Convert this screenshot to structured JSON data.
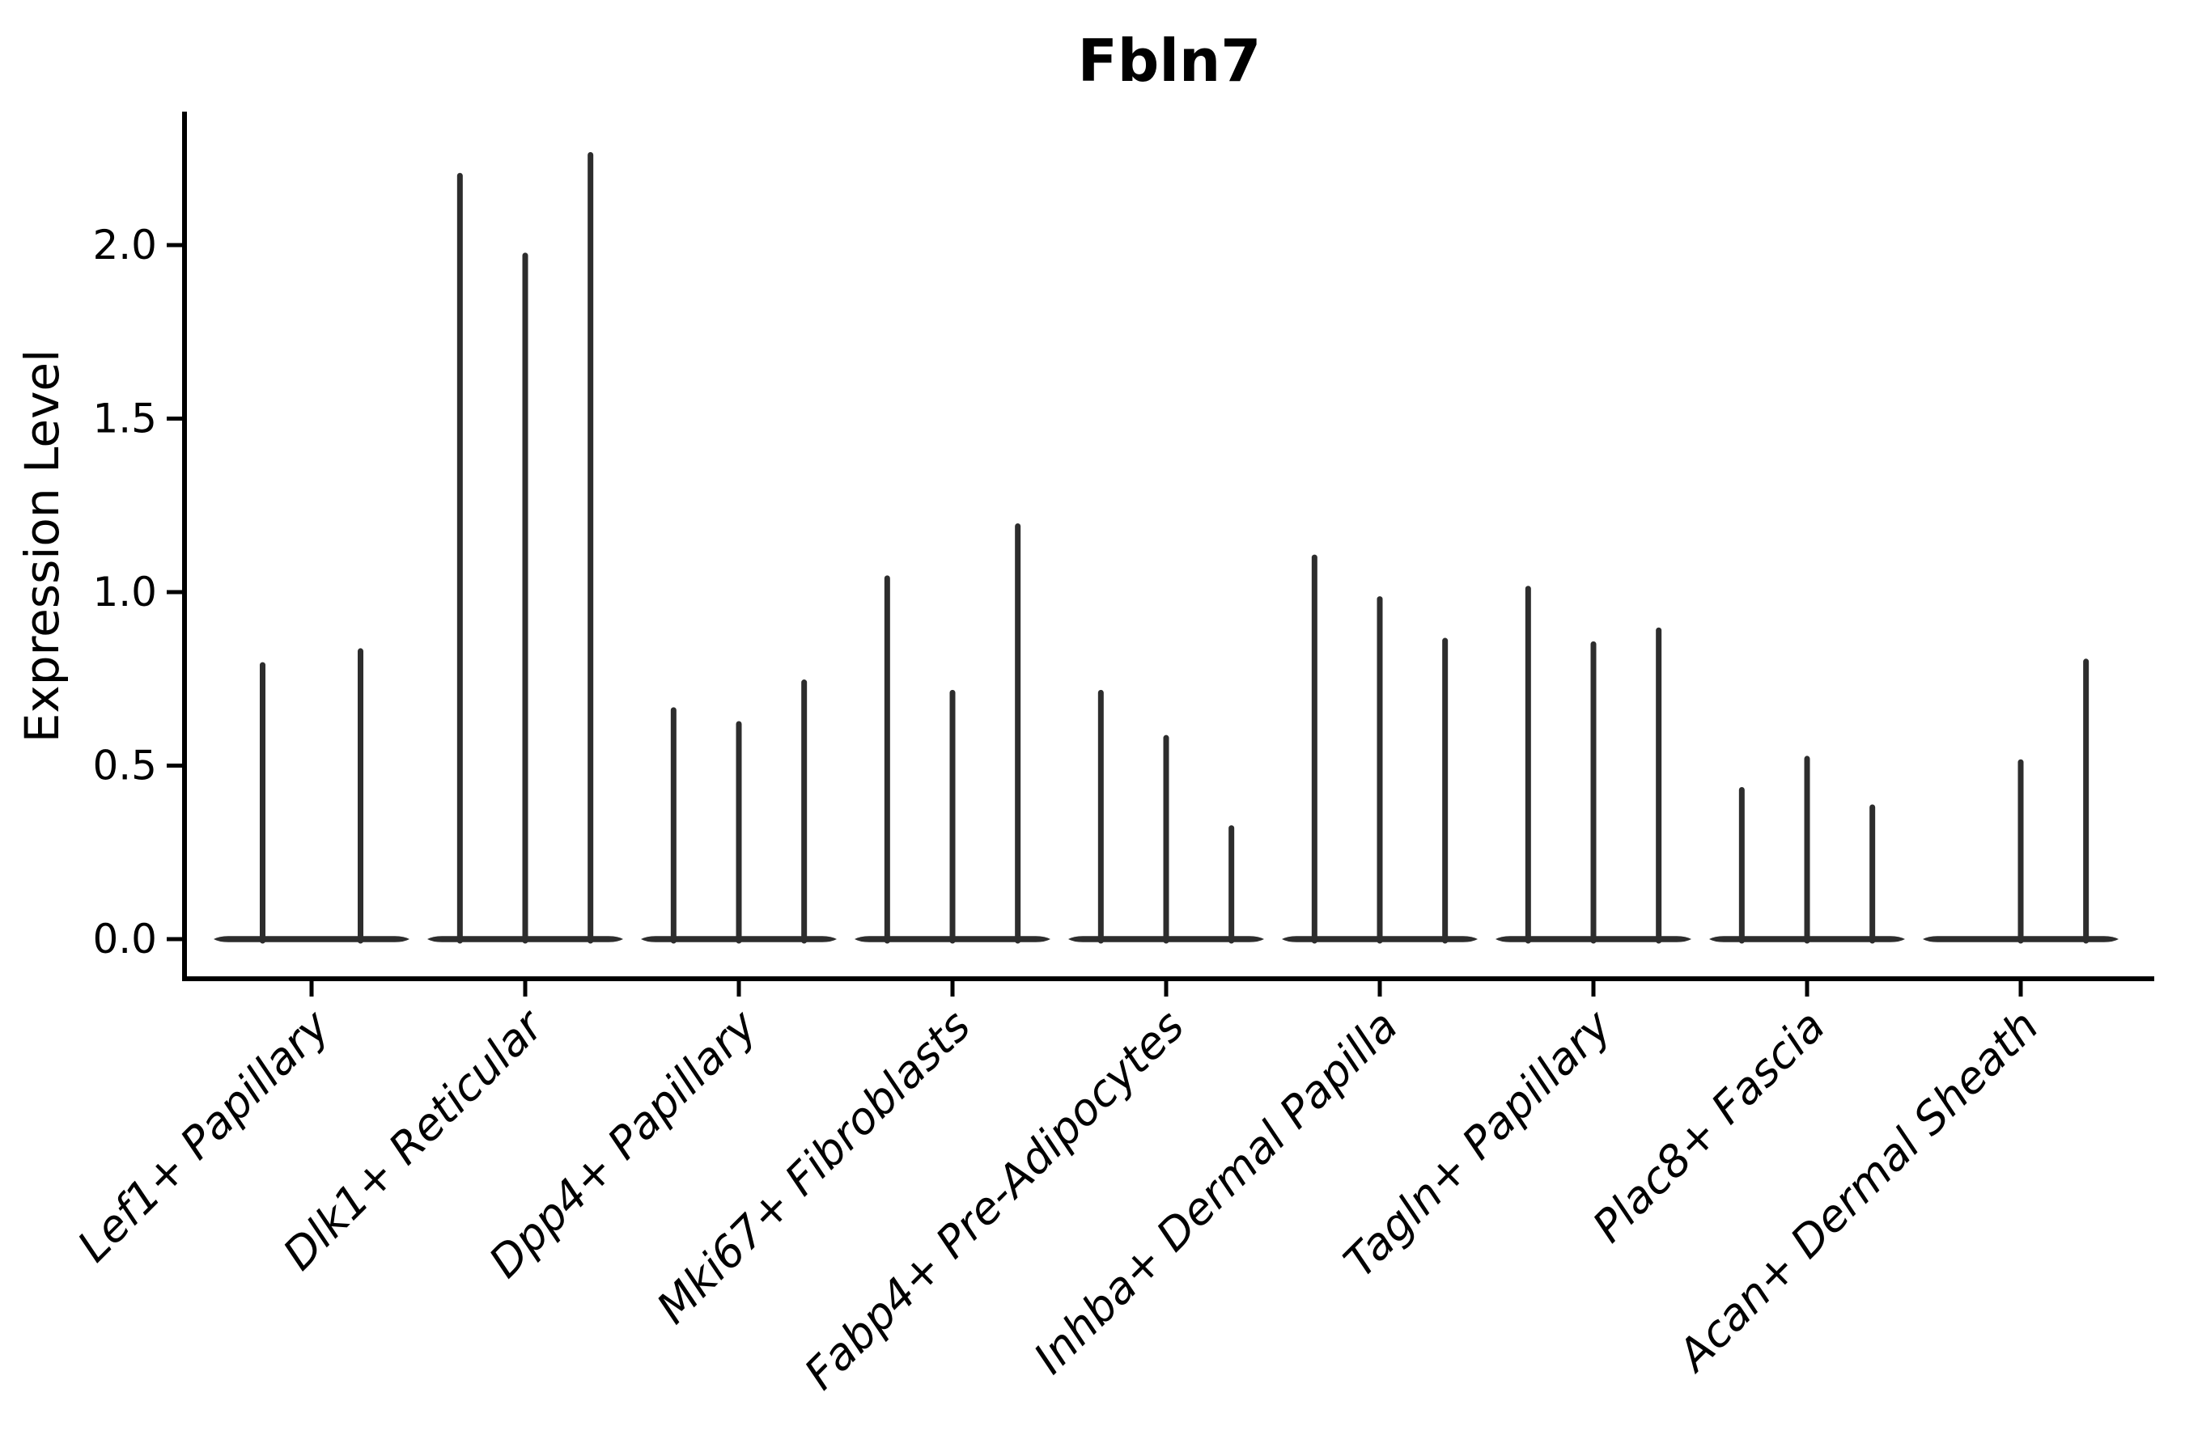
{
  "title": "Fbln7",
  "ylabel": "Expression Level",
  "colors": {
    "violin": "#2d2d2d",
    "axis": "#000000",
    "background": "#ffffff"
  },
  "chart_data": {
    "type": "violin",
    "title": "Fbln7",
    "xlabel": "",
    "ylabel": "Expression Level",
    "ylim": [
      -0.11,
      2.38
    ],
    "yticks": [
      0.0,
      0.5,
      1.0,
      1.5,
      2.0
    ],
    "ytick_labels": [
      "0.0",
      "0.5",
      "1.0",
      "1.5",
      "2.0"
    ],
    "grid": false,
    "legend": "none",
    "categories": [
      "Lef1+ Papillary",
      "Dlk1+ Reticular",
      "Dpp4+ Papillary",
      "Mki67+ Fibroblasts",
      "Fabp4+ Pre-Adipocytes",
      "Inhba+ Dermal Papilla",
      "Tagln+ Papillary",
      "Plac8+ Fascia",
      "Acan+ Dermal Sheath"
    ],
    "groups": [
      {
        "category": "Lef1+ Papillary",
        "violin_maxima": [
          0.79,
          0.83
        ]
      },
      {
        "category": "Dlk1+ Reticular",
        "violin_maxima": [
          2.2,
          1.97,
          2.26
        ]
      },
      {
        "category": "Dpp4+ Papillary",
        "violin_maxima": [
          0.66,
          0.62,
          0.74
        ]
      },
      {
        "category": "Mki67+ Fibroblasts",
        "violin_maxima": [
          1.04,
          0.71,
          1.19
        ]
      },
      {
        "category": "Fabp4+ Pre-Adipocytes",
        "violin_maxima": [
          0.71,
          0.58,
          0.32
        ]
      },
      {
        "category": "Inhba+ Dermal Papilla",
        "violin_maxima": [
          1.1,
          0.98,
          0.86
        ]
      },
      {
        "category": "Tagln+ Papillary",
        "violin_maxima": [
          1.01,
          0.85,
          0.89
        ]
      },
      {
        "category": "Plac8+ Fascia",
        "violin_maxima": [
          0.43,
          0.52,
          0.38
        ]
      },
      {
        "category": "Acan+ Dermal Sheath",
        "violin_maxima": [
          0.0,
          0.51,
          0.8
        ]
      }
    ],
    "note": "Each violin is near-zero width: a flat density mass at 0 with a thin spike to its maximum expression value; 0.00 means completely flat violin (no spike)."
  }
}
